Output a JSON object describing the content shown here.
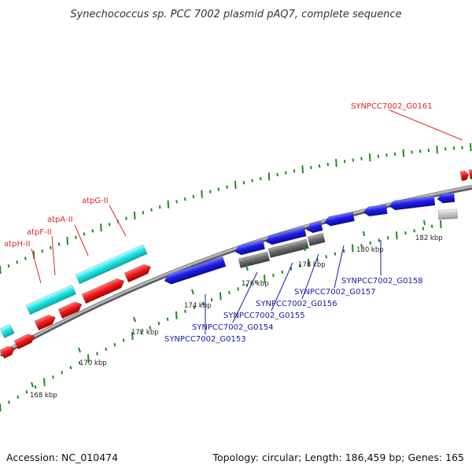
{
  "title": "Synechococcus sp. PCC 7002 plasmid pAQ7, complete sequence",
  "footer": {
    "accession": "Accession: NC_010474",
    "summary": "Topology: circular; Length: 186,459 bp; Genes: 165"
  },
  "ticks": [
    "168 kbp",
    "170 kbp",
    "172 kbp",
    "174 kbp",
    "176 kbp",
    "178 kbp",
    "180 kbp",
    "182 kbp"
  ],
  "gene_labels_red": [
    "atpH-II",
    "atpF-II",
    "atpA-II",
    "atpG-II",
    "SYNPCC7002_G0161"
  ],
  "gene_labels_blue": [
    "SYNPCC7002_G0153",
    "SYNPCC7002_G0154",
    "SYNPCC7002_G0155",
    "SYNPCC7002_G0156",
    "SYNPCC7002_G0157",
    "SYNPCC7002_G0158"
  ],
  "colors": {
    "forward_gene": "#e81b1b",
    "rna_gene": "#19e3e3",
    "reverse_gene": "#1b1bd8",
    "pseudo_gene": "#6c6c6c",
    "backbone": "#8c8c8c",
    "gc_ticks": "#1f8a1f",
    "label_red": "#e0262a",
    "label_blue": "#1a1aa6"
  }
}
